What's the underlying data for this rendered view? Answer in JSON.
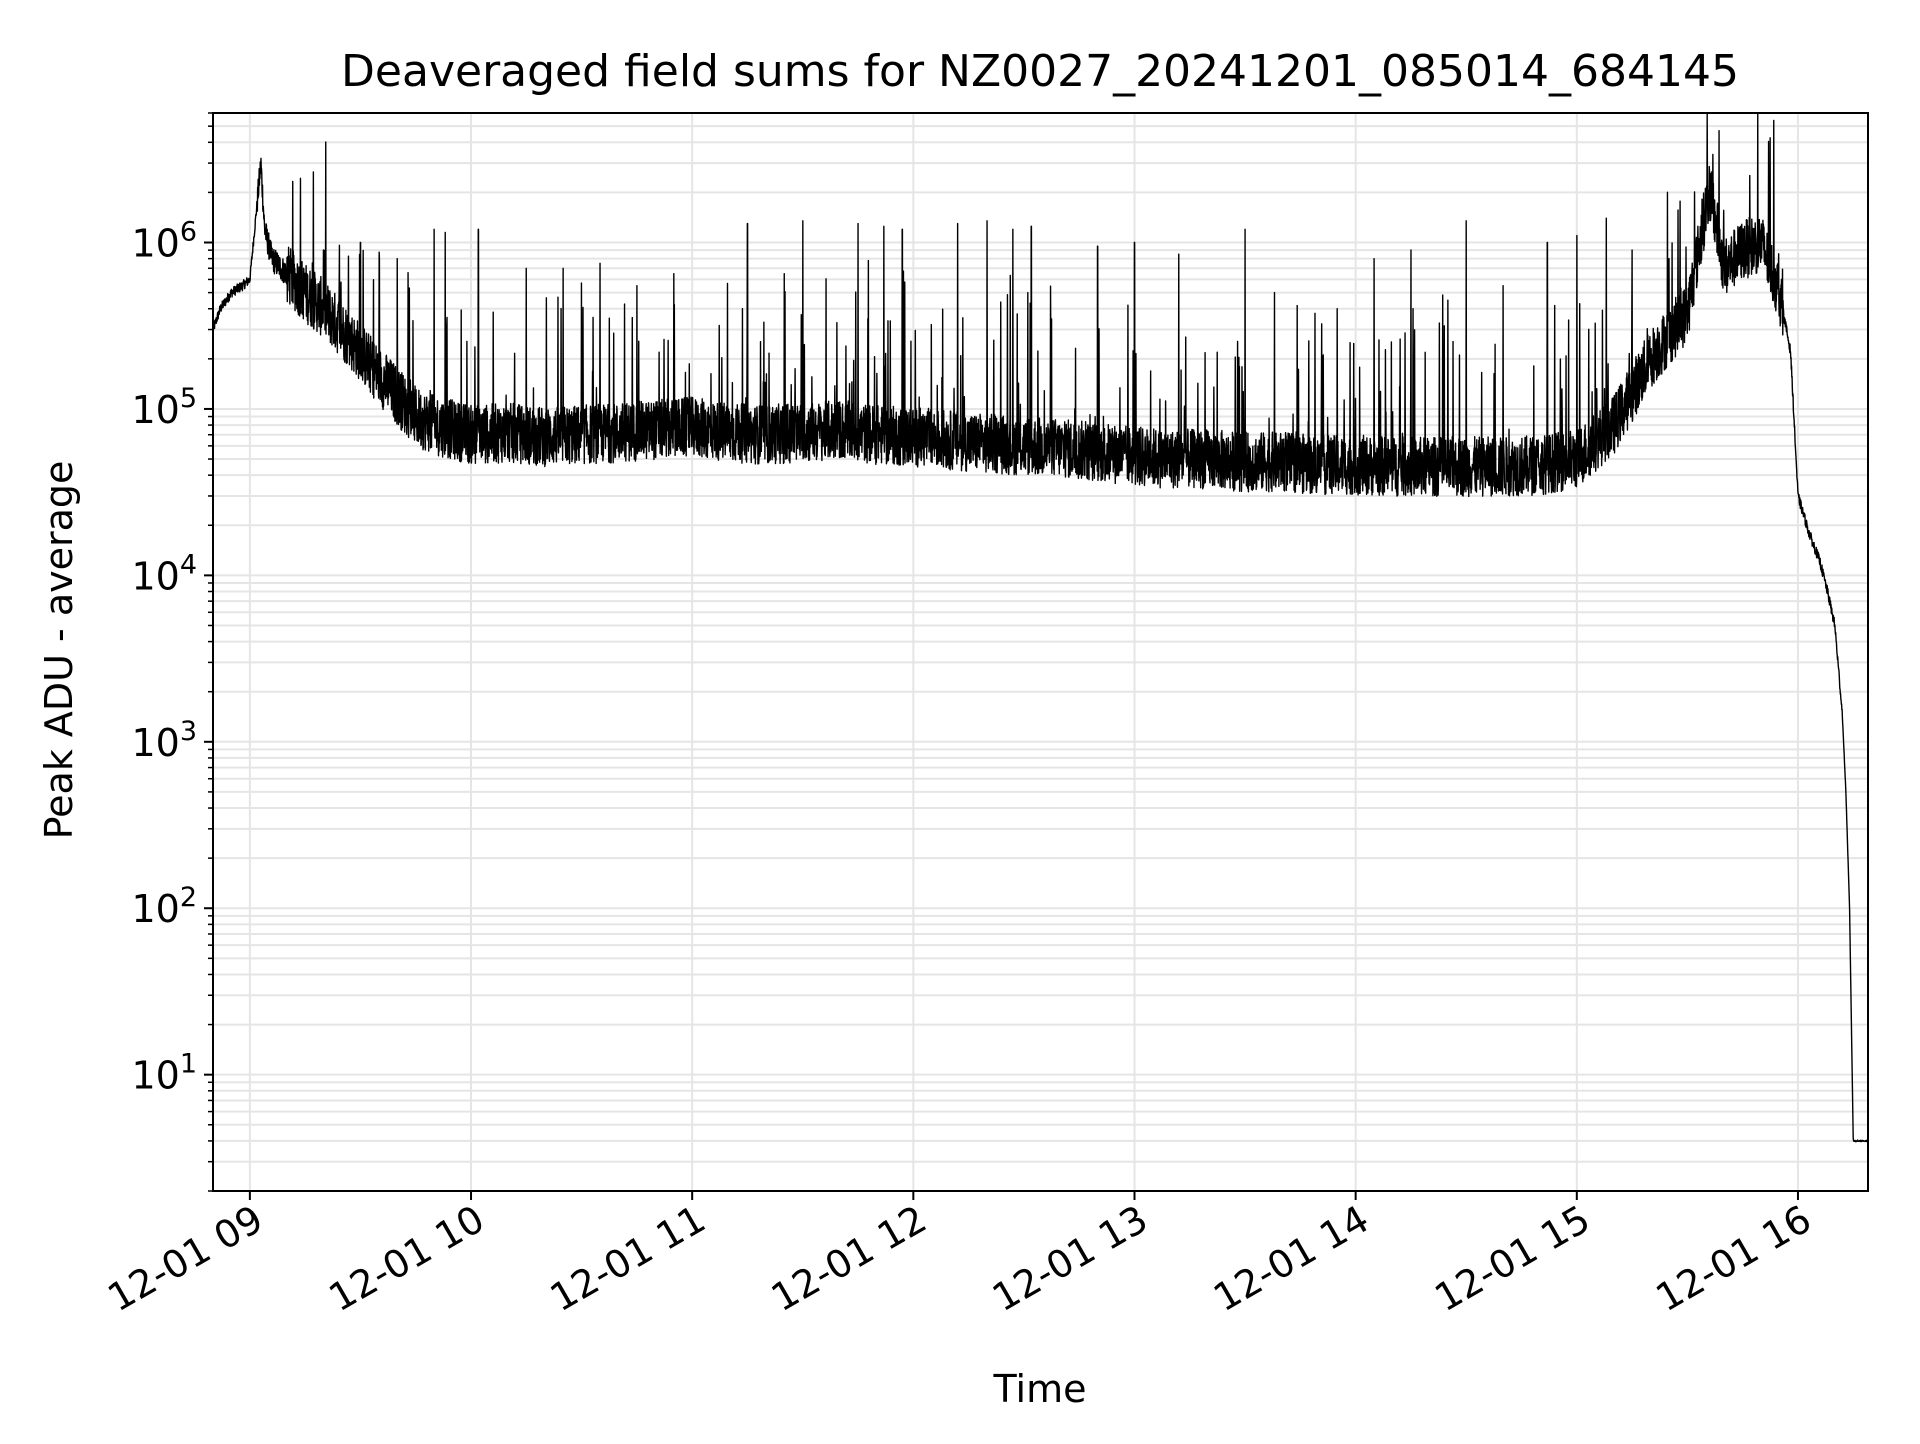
{
  "chart_data": {
    "type": "line",
    "title": "Deaveraged field sums for NZ0027_20241201_085014_684145",
    "xlabel": "Time",
    "ylabel": "Peak ADU - average",
    "yscale": "log",
    "ylim": [
      2,
      6000000
    ],
    "xlim": [
      "12-01 08:50",
      "12-01 16:19"
    ],
    "grid": true,
    "line_color": "#000000",
    "grid_color": "#e5e5e5",
    "x_ticks": [
      {
        "value": "12-01 09:00",
        "label": "12-01 09"
      },
      {
        "value": "12-01 10:00",
        "label": "12-01 10"
      },
      {
        "value": "12-01 11:00",
        "label": "12-01 11"
      },
      {
        "value": "12-01 12:00",
        "label": "12-01 12"
      },
      {
        "value": "12-01 13:00",
        "label": "12-01 13"
      },
      {
        "value": "12-01 14:00",
        "label": "12-01 14"
      },
      {
        "value": "12-01 15:00",
        "label": "12-01 15"
      },
      {
        "value": "12-01 16:00",
        "label": "12-01 16"
      }
    ],
    "y_ticks": [
      {
        "value": 10,
        "base": "10",
        "exp": "1"
      },
      {
        "value": 100,
        "base": "10",
        "exp": "2"
      },
      {
        "value": 1000,
        "base": "10",
        "exp": "3"
      },
      {
        "value": 10000,
        "base": "10",
        "exp": "4"
      },
      {
        "value": 100000,
        "base": "10",
        "exp": "5"
      },
      {
        "value": 1000000,
        "base": "10",
        "exp": "6"
      }
    ],
    "series": [
      {
        "x": [
          "12-01 08:50",
          "12-01 08:52",
          "12-01 08:55",
          "12-01 08:58",
          "12-01 09:00",
          "12-01 09:03",
          "12-01 09:04",
          "12-01 09:06",
          "12-01 09:10",
          "12-01 09:15",
          "12-01 09:20",
          "12-01 09:25",
          "12-01 09:30",
          "12-01 09:35",
          "12-01 09:40",
          "12-01 09:45",
          "12-01 09:50",
          "12-01 09:55",
          "12-01 10:00",
          "12-01 10:10",
          "12-01 10:20",
          "12-01 10:30",
          "12-01 10:40",
          "12-01 10:50",
          "12-01 11:00",
          "12-01 11:10",
          "12-01 11:20",
          "12-01 11:30",
          "12-01 11:40",
          "12-01 11:50",
          "12-01 12:00",
          "12-01 12:10",
          "12-01 12:20",
          "12-01 12:30",
          "12-01 12:40",
          "12-01 12:50",
          "12-01 13:00",
          "12-01 13:10",
          "12-01 13:20",
          "12-01 13:30",
          "12-01 13:40",
          "12-01 13:50",
          "12-01 14:00",
          "12-01 14:10",
          "12-01 14:20",
          "12-01 14:30",
          "12-01 14:40",
          "12-01 14:50",
          "12-01 15:00",
          "12-01 15:10",
          "12-01 15:20",
          "12-01 15:30",
          "12-01 15:36",
          "12-01 15:40",
          "12-01 15:45",
          "12-01 15:50",
          "12-01 15:55",
          "12-01 15:58",
          "12-01 16:00",
          "12-01 16:03",
          "12-01 16:06",
          "12-01 16:08",
          "12-01 16:10",
          "12-01 16:12",
          "12-01 16:13",
          "12-01 16:14",
          "12-01 16:15",
          "12-01 16:16",
          "12-01 16:17",
          "12-01 16:19"
        ],
        "y": [
          300000,
          400000,
          500000,
          550000,
          600000,
          3000000,
          1200000,
          800000,
          650000,
          500000,
          400000,
          300000,
          220000,
          160000,
          120000,
          90000,
          80000,
          75000,
          70000,
          72000,
          68000,
          70000,
          72000,
          75000,
          78000,
          72000,
          70000,
          72000,
          75000,
          70000,
          68000,
          65000,
          62000,
          60000,
          58000,
          55000,
          52000,
          50000,
          50000,
          48000,
          48000,
          46000,
          46000,
          45000,
          45000,
          45000,
          45000,
          46000,
          50000,
          80000,
          200000,
          380000,
          2100000,
          700000,
          900000,
          1000000,
          500000,
          220000,
          30000,
          18000,
          12000,
          8000,
          5000,
          1500,
          500,
          100,
          4,
          4,
          4,
          4
        ],
        "spikes": [
          [
            "12-01 09:20",
            900000
          ],
          [
            "12-01 09:30",
            1000000
          ],
          [
            "12-01 09:40",
            800000
          ],
          [
            "12-01 09:50",
            1200000
          ],
          [
            "12-01 09:53",
            1150000
          ],
          [
            "12-01 10:02",
            1200000
          ],
          [
            "12-01 10:15",
            700000
          ],
          [
            "12-01 10:25",
            700000
          ],
          [
            "12-01 10:35",
            750000
          ],
          [
            "12-01 10:45",
            550000
          ],
          [
            "12-01 10:55",
            650000
          ],
          [
            "12-01 11:15",
            1300000
          ],
          [
            "12-01 11:25",
            650000
          ],
          [
            "12-01 11:30",
            1350000
          ],
          [
            "12-01 11:45",
            1300000
          ],
          [
            "12-01 11:52",
            1250000
          ],
          [
            "12-01 11:57",
            1200000
          ],
          [
            "12-01 12:12",
            1300000
          ],
          [
            "12-01 12:20",
            1350000
          ],
          [
            "12-01 12:27",
            1200000
          ],
          [
            "12-01 12:32",
            1250000
          ],
          [
            "12-01 12:50",
            950000
          ],
          [
            "12-01 13:00",
            1000000
          ],
          [
            "12-01 13:12",
            850000
          ],
          [
            "12-01 13:30",
            1200000
          ],
          [
            "12-01 13:38",
            500000
          ],
          [
            "12-01 13:55",
            400000
          ],
          [
            "12-01 14:05",
            800000
          ],
          [
            "12-01 14:15",
            900000
          ],
          [
            "12-01 14:25",
            450000
          ],
          [
            "12-01 14:30",
            1350000
          ],
          [
            "12-01 14:40",
            550000
          ],
          [
            "12-01 14:52",
            1000000
          ],
          [
            "12-01 15:00",
            1100000
          ],
          [
            "12-01 15:08",
            1400000
          ],
          [
            "12-01 15:15",
            900000
          ],
          [
            "12-01 15:25",
            800000
          ],
          [
            "12-01 15:37",
            2100000
          ]
        ]
      }
    ]
  }
}
